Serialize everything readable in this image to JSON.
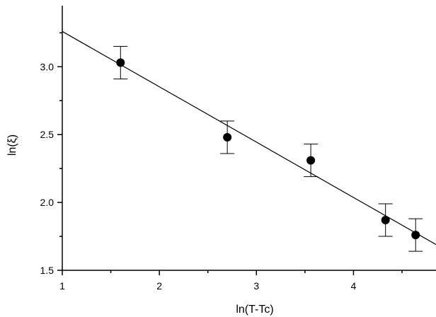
{
  "chart_data": {
    "type": "scatter",
    "title": "",
    "xlabel": "ln(T-Tc)",
    "ylabel": "ln(ξ)",
    "xlim": [
      1,
      4.85
    ],
    "ylim": [
      1.5,
      3.45
    ],
    "x_ticks": [
      1,
      2,
      3,
      4
    ],
    "x_tick_labels": [
      "1",
      "2",
      "3",
      "4"
    ],
    "x_minor_ticks": [
      1.5,
      2.5,
      3.5,
      4.5
    ],
    "y_ticks": [
      1.5,
      2.0,
      2.5,
      3.0
    ],
    "y_tick_labels": [
      "1.5",
      "2.0",
      "2.5",
      "3.0"
    ],
    "y_minor_ticks": [
      1.75,
      2.25,
      2.75,
      3.25
    ],
    "grid": false,
    "legend": "none",
    "series": [
      {
        "x": [
          1.6,
          2.7,
          3.56,
          4.33,
          4.64
        ],
        "y": [
          3.03,
          2.48,
          2.31,
          1.87,
          1.76
        ],
        "yerr": [
          0.12,
          0.12,
          0.12,
          0.12,
          0.12
        ],
        "marker": "circle",
        "color": "#000000"
      }
    ],
    "fit_line": {
      "x": [
        1,
        4.85
      ],
      "y": [
        3.26,
        1.69
      ],
      "color": "#000000"
    }
  }
}
